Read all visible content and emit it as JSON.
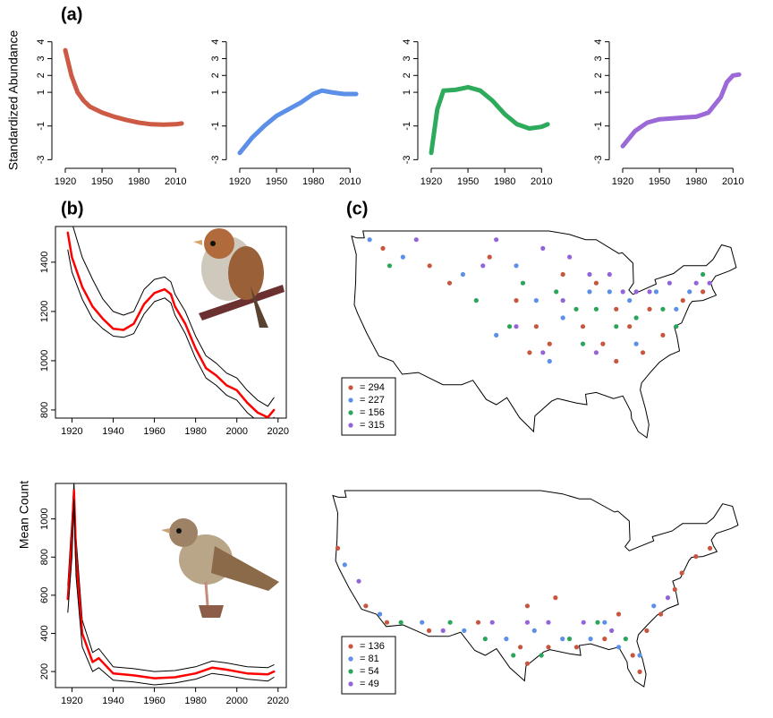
{
  "panel_labels": [
    "(a)",
    "(b)",
    "(c)"
  ],
  "y_label_a": "Standardized Abundance",
  "y_label_b": "Mean Count",
  "chart_data": [
    {
      "type": "line",
      "x": [
        1920,
        1925,
        1930,
        1935,
        1940,
        1950,
        1960,
        1970,
        1980,
        1990,
        2000,
        2010,
        2015
      ],
      "series": [
        {
          "color": "#cd5a44",
          "values": [
            3.5,
            2.0,
            1.0,
            0.5,
            0.15,
            -0.2,
            -0.45,
            -0.65,
            -0.8,
            -0.9,
            -0.92,
            -0.9,
            -0.85
          ]
        }
      ],
      "xlim": [
        1912,
        2020
      ],
      "ylim": [
        -3.3,
        4.3
      ],
      "xticks": [
        1920,
        1950,
        1980,
        2010
      ],
      "yticks": [
        -3,
        -1,
        1,
        2,
        3,
        4
      ]
    },
    {
      "type": "line",
      "x": [
        1920,
        1930,
        1940,
        1950,
        1960,
        1970,
        1980,
        1987,
        1995,
        2005,
        2015
      ],
      "series": [
        {
          "color": "#5b8fe8",
          "values": [
            -2.6,
            -1.7,
            -1.0,
            -0.4,
            0.0,
            0.4,
            0.9,
            1.1,
            1.0,
            0.9,
            0.9
          ]
        }
      ],
      "xlim": [
        1912,
        2020
      ],
      "ylim": [
        -3.3,
        4.3
      ],
      "xticks": [
        1920,
        1950,
        1980,
        2010
      ],
      "yticks": [
        -3,
        -1,
        1,
        2,
        3,
        4
      ]
    },
    {
      "type": "line",
      "x": [
        1920,
        1925,
        1930,
        1940,
        1950,
        1960,
        1970,
        1980,
        1990,
        2000,
        2010,
        2015
      ],
      "series": [
        {
          "color": "#2eaa5c",
          "values": [
            -2.6,
            0.0,
            1.1,
            1.15,
            1.3,
            1.1,
            0.5,
            -0.3,
            -0.9,
            -1.15,
            -1.05,
            -0.9
          ]
        }
      ],
      "xlim": [
        1912,
        2020
      ],
      "ylim": [
        -3.3,
        4.3
      ],
      "xticks": [
        1920,
        1950,
        1980,
        2010
      ],
      "yticks": [
        -3,
        -1,
        1,
        2,
        3,
        4
      ]
    },
    {
      "type": "line",
      "x": [
        1920,
        1930,
        1940,
        1950,
        1960,
        1970,
        1980,
        1990,
        2000,
        2005,
        2010,
        2015
      ],
      "series": [
        {
          "color": "#9b6ad6",
          "values": [
            -2.2,
            -1.3,
            -0.8,
            -0.6,
            -0.55,
            -0.5,
            -0.45,
            -0.2,
            0.7,
            1.6,
            2.0,
            2.05
          ]
        }
      ],
      "xlim": [
        1912,
        2020
      ],
      "ylim": [
        -3.3,
        4.3
      ],
      "xticks": [
        1920,
        1950,
        1980,
        2010
      ],
      "yticks": [
        -3,
        -1,
        1,
        2,
        3,
        4
      ]
    },
    {
      "type": "line",
      "box": true,
      "x": [
        1918,
        1920,
        1925,
        1930,
        1935,
        1940,
        1945,
        1950,
        1955,
        1960,
        1965,
        1968,
        1970,
        1975,
        1980,
        1985,
        1990,
        1995,
        2000,
        2005,
        2010,
        2015,
        2018
      ],
      "series": [
        {
          "color": "#000000",
          "values": [
            1600,
            1560,
            1420,
            1330,
            1250,
            1200,
            1185,
            1200,
            1290,
            1330,
            1340,
            1320,
            1270,
            1200,
            1100,
            1020,
            990,
            950,
            930,
            880,
            840,
            815,
            850
          ]
        },
        {
          "color": "#ff0000",
          "values": [
            1520,
            1420,
            1300,
            1220,
            1170,
            1130,
            1125,
            1150,
            1230,
            1275,
            1290,
            1270,
            1220,
            1150,
            1050,
            970,
            940,
            900,
            880,
            830,
            790,
            770,
            800
          ]
        },
        {
          "color": "#000000",
          "values": [
            1450,
            1360,
            1250,
            1170,
            1130,
            1100,
            1095,
            1110,
            1190,
            1240,
            1255,
            1235,
            1185,
            1110,
            1010,
            930,
            900,
            860,
            840,
            790,
            755,
            740,
            770
          ]
        }
      ],
      "xlim": [
        1912,
        2024
      ],
      "ylim": [
        767,
        1545
      ],
      "xticks": [
        1920,
        1940,
        1960,
        1980,
        2000,
        2020
      ],
      "yticks": [
        800,
        1000,
        1200,
        1400
      ]
    },
    {
      "type": "line",
      "box": true,
      "x": [
        1918,
        1920,
        1921,
        1922,
        1925,
        1930,
        1933,
        1940,
        1950,
        1960,
        1970,
        1980,
        1988,
        1995,
        2005,
        2015,
        2018
      ],
      "series": [
        {
          "color": "#000000",
          "values": [
            650,
            1000,
            1190,
            900,
            470,
            300,
            320,
            225,
            215,
            200,
            205,
            225,
            255,
            245,
            225,
            220,
            235
          ]
        },
        {
          "color": "#ff0000",
          "values": [
            580,
            900,
            1150,
            800,
            400,
            250,
            270,
            190,
            180,
            165,
            170,
            190,
            220,
            210,
            190,
            185,
            200
          ]
        },
        {
          "color": "#000000",
          "values": [
            510,
            800,
            1100,
            700,
            330,
            200,
            220,
            155,
            145,
            130,
            140,
            160,
            190,
            180,
            160,
            150,
            170
          ]
        }
      ],
      "xlim": [
        1912,
        2024
      ],
      "ylim": [
        116,
        1186
      ],
      "xticks": [
        1920,
        1940,
        1960,
        1980,
        2000,
        2020
      ],
      "yticks": [
        200,
        400,
        600,
        800,
        1000
      ]
    },
    {
      "type": "map",
      "series": [
        {
          "name": "= 294",
          "color": "#c8553d",
          "lon": [
            -120,
            -113,
            -104,
            -100,
            -97,
            -95,
            -90,
            -87,
            -85,
            -83,
            -80,
            -78,
            -75,
            -72,
            -88,
            -93,
            -81,
            -98,
            -110,
            -85
          ],
          "lat": [
            47,
            45,
            46,
            41,
            38,
            36,
            38,
            36,
            40,
            38,
            40,
            37,
            41,
            42,
            43,
            44,
            35,
            35,
            43,
            34
          ]
        },
        {
          "name": "= 227",
          "color": "#5b8fe8",
          "lon": [
            -122,
            -117,
            -108,
            -100,
            -97,
            -93,
            -89,
            -86,
            -83,
            -79,
            -76,
            -74,
            -103,
            -95,
            -82
          ],
          "lat": [
            48,
            46,
            44,
            45,
            41,
            39,
            42,
            42,
            41,
            42,
            40,
            42,
            37,
            34,
            36
          ]
        },
        {
          "name": "= 156",
          "color": "#2aa55a",
          "lon": [
            -119,
            -106,
            -99,
            -94,
            -91,
            -88,
            -85,
            -82,
            -78,
            -76,
            -72,
            -101,
            -90
          ],
          "lat": [
            45,
            41,
            43,
            42,
            40,
            40,
            38,
            39,
            40,
            38,
            44,
            38,
            36
          ]
        },
        {
          "name": "= 315",
          "color": "#9364d8",
          "lon": [
            -115,
            -103,
            -96,
            -92,
            -89,
            -86,
            -84,
            -82,
            -80,
            -77,
            -73,
            -71,
            -96,
            -88,
            -93,
            -100,
            -105
          ],
          "lat": [
            48,
            48,
            47,
            46,
            44,
            44,
            42,
            42,
            42,
            43,
            43,
            43,
            35,
            35,
            41,
            38,
            45
          ]
        }
      ]
    },
    {
      "type": "map",
      "series": [
        {
          "name": "= 136",
          "color": "#c8553d",
          "lon": [
            -124,
            -120,
            -117,
            -111,
            -104,
            -98,
            -97,
            -94,
            -90,
            -86,
            -82,
            -81,
            -80,
            -78,
            -76,
            -75,
            -73,
            -71,
            -97,
            -93,
            -84
          ],
          "lat": [
            42,
            35,
            33,
            32,
            33,
            30,
            28,
            30,
            30,
            31,
            29,
            27,
            32,
            34,
            37,
            39,
            41,
            42,
            35,
            36,
            34
          ]
        },
        {
          "name": "= 81",
          "color": "#5b8fe8",
          "lon": [
            -123,
            -118,
            -112,
            -106,
            -100,
            -96,
            -92,
            -88,
            -84,
            -81,
            -79,
            -86
          ],
          "lat": [
            40,
            34,
            33,
            32,
            31,
            32,
            31,
            31,
            30,
            29,
            35,
            33
          ]
        },
        {
          "name": "= 54",
          "color": "#2aa55a",
          "lon": [
            -115,
            -103,
            -99,
            -95,
            -91,
            -87,
            -83,
            -108
          ],
          "lat": [
            33,
            31,
            29,
            29,
            31,
            33,
            31,
            33
          ]
        },
        {
          "name": "= 49",
          "color": "#9364d8",
          "lon": [
            -121,
            -109,
            -97,
            -89,
            -85,
            -77,
            -94,
            -102
          ],
          "lat": [
            38,
            32,
            33,
            33,
            32,
            36,
            33,
            33
          ]
        }
      ]
    }
  ]
}
